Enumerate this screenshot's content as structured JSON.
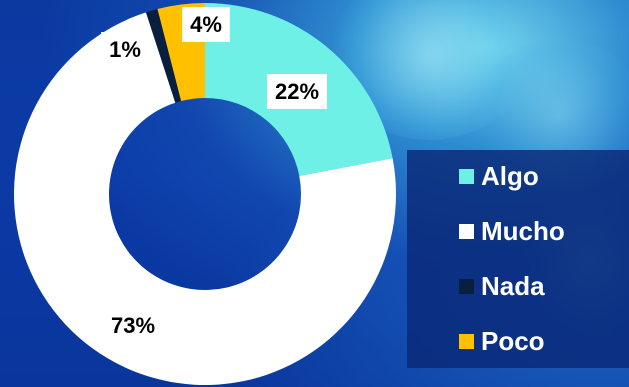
{
  "chart_data": {
    "type": "pie",
    "variant": "donut",
    "categories": [
      "Algo",
      "Mucho",
      "Nada",
      "Poco"
    ],
    "values": [
      22,
      73,
      1,
      4
    ],
    "labels": [
      "22%",
      "73%",
      "1%",
      "4%"
    ],
    "colors": [
      "#6ef0e6",
      "#ffffff",
      "#0a1f3d",
      "#ffc000"
    ],
    "legend_position": "right",
    "label_style": "boxed"
  },
  "legend": {
    "items": [
      {
        "label": "Algo",
        "color": "#6ef0e6"
      },
      {
        "label": "Mucho",
        "color": "#ffffff"
      },
      {
        "label": "Nada",
        "color": "#0a1f3d"
      },
      {
        "label": "Poco",
        "color": "#ffc000"
      }
    ]
  }
}
